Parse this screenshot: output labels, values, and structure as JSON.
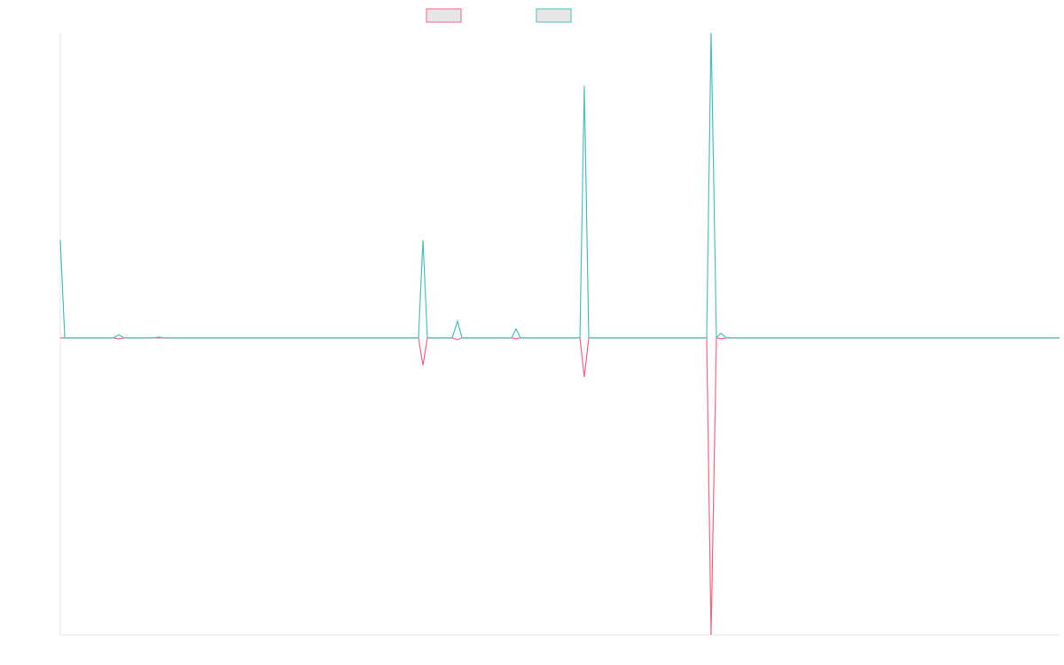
{
  "chart_data": {
    "type": "line",
    "x": [
      0,
      5,
      60,
      66,
      72,
      106,
      111,
      116,
      404,
      409,
      414,
      442,
      448,
      453,
      509,
      514,
      519,
      586,
      591,
      596,
      729,
      734,
      740,
      745,
      751,
      1127
    ],
    "xlim": [
      0,
      1127
    ],
    "ylim": [
      -97.4,
      100
    ],
    "series": [
      {
        "color": "#ff6384",
        "values": [
          0,
          0,
          0,
          -0.3,
          0,
          0,
          0,
          0,
          0,
          -9,
          0,
          0,
          -0.6,
          0,
          0,
          -0.3,
          0,
          0,
          -12.8,
          0,
          0,
          -97.4,
          0,
          -0.3,
          0,
          0
        ]
      },
      {
        "color": "#4bc0c0",
        "values": [
          32,
          0,
          0,
          1,
          0,
          0,
          0.3,
          0,
          0,
          32,
          0,
          0,
          5.5,
          0,
          0,
          2.9,
          0,
          0,
          82.6,
          0,
          0,
          100,
          0,
          1.5,
          0,
          0
        ]
      }
    ]
  }
}
